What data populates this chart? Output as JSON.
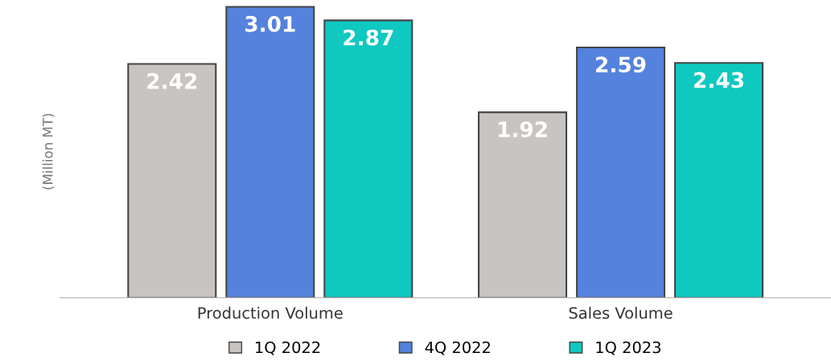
{
  "chart_data": {
    "type": "bar",
    "ylabel": "(Million MT)",
    "categories": [
      "Production Volume",
      "Sales Volume"
    ],
    "series": [
      {
        "name": "1Q 2022",
        "color": "#c8c4c1",
        "values": [
          2.42,
          1.92
        ]
      },
      {
        "name": "4Q 2022",
        "color": "#5582dc",
        "values": [
          3.01,
          2.59
        ]
      },
      {
        "name": "1Q 2023",
        "color": "#0fc8c0",
        "values": [
          2.87,
          2.43
        ]
      }
    ],
    "data_labels": true,
    "legend": "bottom",
    "grid": false
  }
}
